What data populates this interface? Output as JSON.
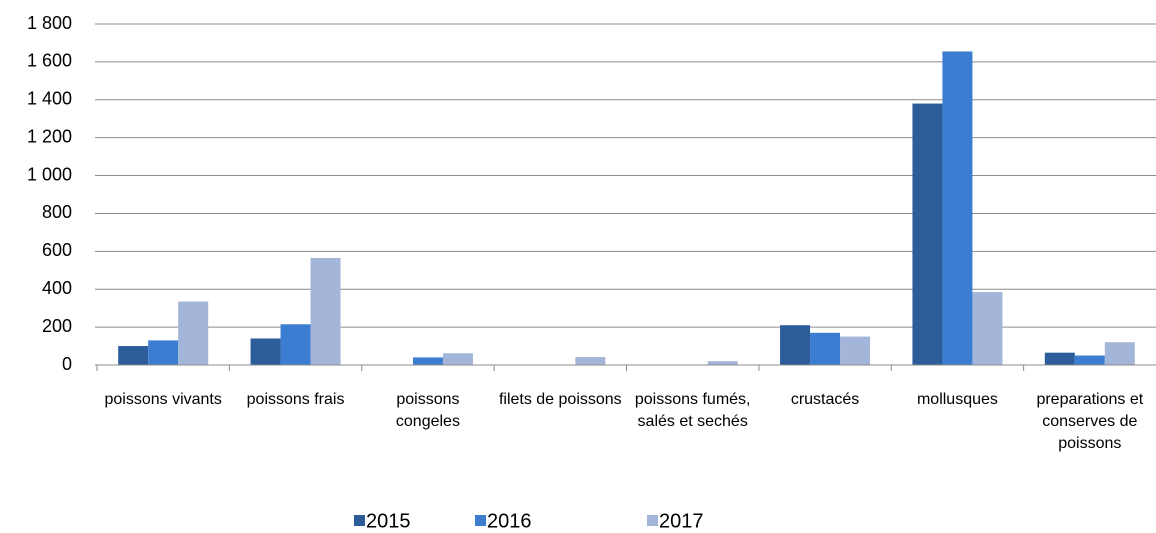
{
  "chart_data": {
    "type": "bar",
    "categories": [
      "poissons vivants",
      "poissons frais",
      "poissons congeles",
      "filets  de poissons",
      "poissons fumés, salés et sechés",
      "crustacés",
      "mollusques",
      "preparations et conserves de poissons"
    ],
    "series": [
      {
        "name": "2015",
        "color": "#2c5d9a",
        "values": [
          100,
          140,
          0,
          0,
          0,
          210,
          1380,
          65
        ]
      },
      {
        "name": "2016",
        "color": "#3b7dd0",
        "values": [
          130,
          215,
          40,
          0,
          0,
          170,
          1655,
          50
        ]
      },
      {
        "name": "2017",
        "color": "#a3b5d8",
        "values": [
          335,
          565,
          62,
          42,
          20,
          150,
          385,
          120
        ]
      }
    ],
    "ylim": [
      0,
      1800
    ],
    "yticks": [
      0,
      200,
      400,
      600,
      800,
      {
        "value": 1000,
        "label": "1 000"
      },
      {
        "value": 1200,
        "label": "1 200"
      },
      {
        "value": 1400,
        "label": "1 400"
      },
      {
        "value": 1600,
        "label": "1 600"
      },
      {
        "value": 1800,
        "label": "1 800"
      }
    ],
    "grid": true,
    "legend": "bottom"
  }
}
